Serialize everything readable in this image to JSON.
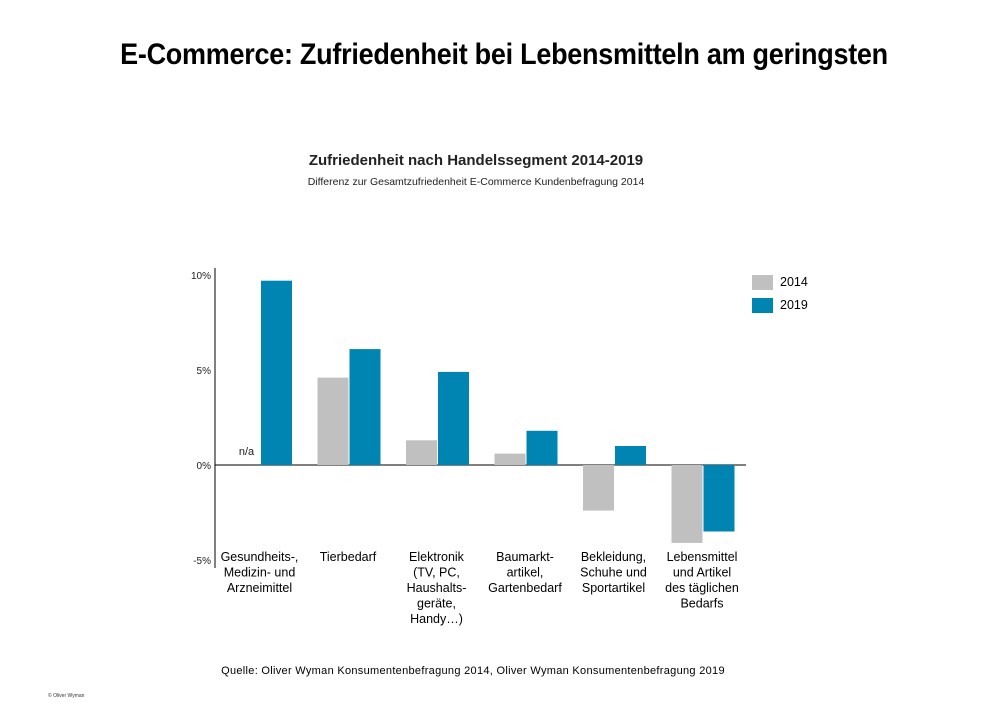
{
  "page": {
    "title": "E-Commerce: Zufriedenheit bei Lebensmitteln am geringsten",
    "source": "Quelle: Oliver Wyman Konsumentenbefragung  2014, Oliver Wyman Konsumentenbefragung  2019",
    "copyright": "© Oliver Wyman"
  },
  "colors": {
    "series_2014": "#c0c0c0",
    "series_2019": "#0085b3",
    "axis": "#000000"
  },
  "chart_data": {
    "type": "bar",
    "title": "Zufriedenheit nach Handelssegment 2014-2019",
    "subtitle": "Differenz zur Gesamtzufriedenheit E-Commerce Kundenbefragung 2014",
    "categories": [
      [
        "Gesundheits-,",
        "Medizin- und",
        "Arzneimittel"
      ],
      [
        "Tierbedarf"
      ],
      [
        "Elektronik",
        "(TV, PC,",
        "Haushalts-",
        "geräte,",
        "Handy…)"
      ],
      [
        "Baumarkt-",
        "artikel,",
        "Gartenbedarf"
      ],
      [
        "Bekleidung,",
        "Schuhe und",
        "Sportartikel"
      ],
      [
        "Lebensmittel",
        "und Artikel",
        "des täglichen",
        "Bedarfs"
      ]
    ],
    "series": [
      {
        "name": "2014",
        "values": [
          null,
          4.6,
          1.3,
          0.6,
          -2.4,
          -4.1
        ]
      },
      {
        "name": "2019",
        "values": [
          9.7,
          6.1,
          4.9,
          1.8,
          1.0,
          -3.5
        ]
      }
    ],
    "annotations": [
      {
        "category_index": 0,
        "series": "2014",
        "text": "n/a"
      }
    ],
    "yticks": [
      "10%",
      "5%",
      "0%",
      "-5%"
    ],
    "ytick_values": [
      10,
      5,
      0,
      -5
    ],
    "ylim": [
      -5,
      10
    ],
    "grid": false,
    "legend": "top-right"
  }
}
